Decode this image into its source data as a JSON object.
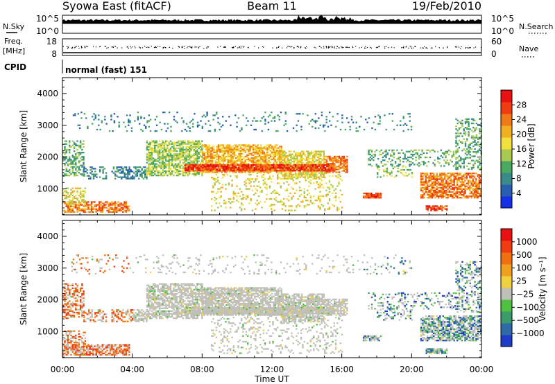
{
  "header": {
    "station": "Syowa East (fitACF)",
    "beam": "Beam 11",
    "date": "19/Feb/2010"
  },
  "noise_panel": {
    "left_label": "N.Sky",
    "right_label": "N.Search",
    "left_ticks": [
      "10^5",
      "10^0"
    ],
    "right_ticks": [
      "10^5",
      "10^0"
    ]
  },
  "freq_panel": {
    "left_label_top": "Freq.",
    "left_label_bottom": "[MHz]",
    "left_ticks": [
      "18",
      "8"
    ],
    "right_label": "Nave",
    "right_ticks": [
      "60",
      "0"
    ],
    "cpid_label": "CPID",
    "cpid_value": "normal (fast) 151"
  },
  "chart_data": [
    {
      "type": "heatmap",
      "name": "Power",
      "ylabel": "Slant Range [km]",
      "y_ticks": [
        "1000",
        "2000",
        "3000",
        "4000"
      ],
      "ylim": [
        180,
        4500
      ],
      "x_range_hours": [
        0,
        24
      ],
      "colorbar_label": "Power [dB]",
      "colorbar_ticks": [
        "4",
        "8",
        "12",
        "16",
        "20",
        "24",
        "28"
      ],
      "colors": [
        "#1530e6",
        "#2a5fb0",
        "#3a8a8a",
        "#4aa860",
        "#a8c850",
        "#f0e040",
        "#f0b020",
        "#f07a18",
        "#f03c10",
        "#e81010"
      ]
    },
    {
      "type": "heatmap",
      "name": "Velocity",
      "ylabel": "Slant Range [km]",
      "y_ticks": [
        "1000",
        "2000",
        "3000",
        "4000"
      ],
      "ylim": [
        180,
        4500
      ],
      "x_range_hours": [
        0,
        24
      ],
      "colorbar_label": "Velocity [m s⁻¹]",
      "colorbar_ticks": [
        "1000",
        "500",
        "100",
        "25",
        "−25",
        "−100",
        "−500",
        "−1000"
      ],
      "colors": [
        "#1f3cc8",
        "#2f6aa8",
        "#3a9a6a",
        "#50c040",
        "#c0c0b8",
        "#f0d040",
        "#f0a020",
        "#f07010",
        "#f03c10",
        "#e81010"
      ]
    }
  ],
  "time_axis": {
    "ticks": [
      "00:00",
      "04:00",
      "08:00",
      "12:00",
      "16:00",
      "20:00",
      "00:00"
    ],
    "label": "Time UT"
  }
}
